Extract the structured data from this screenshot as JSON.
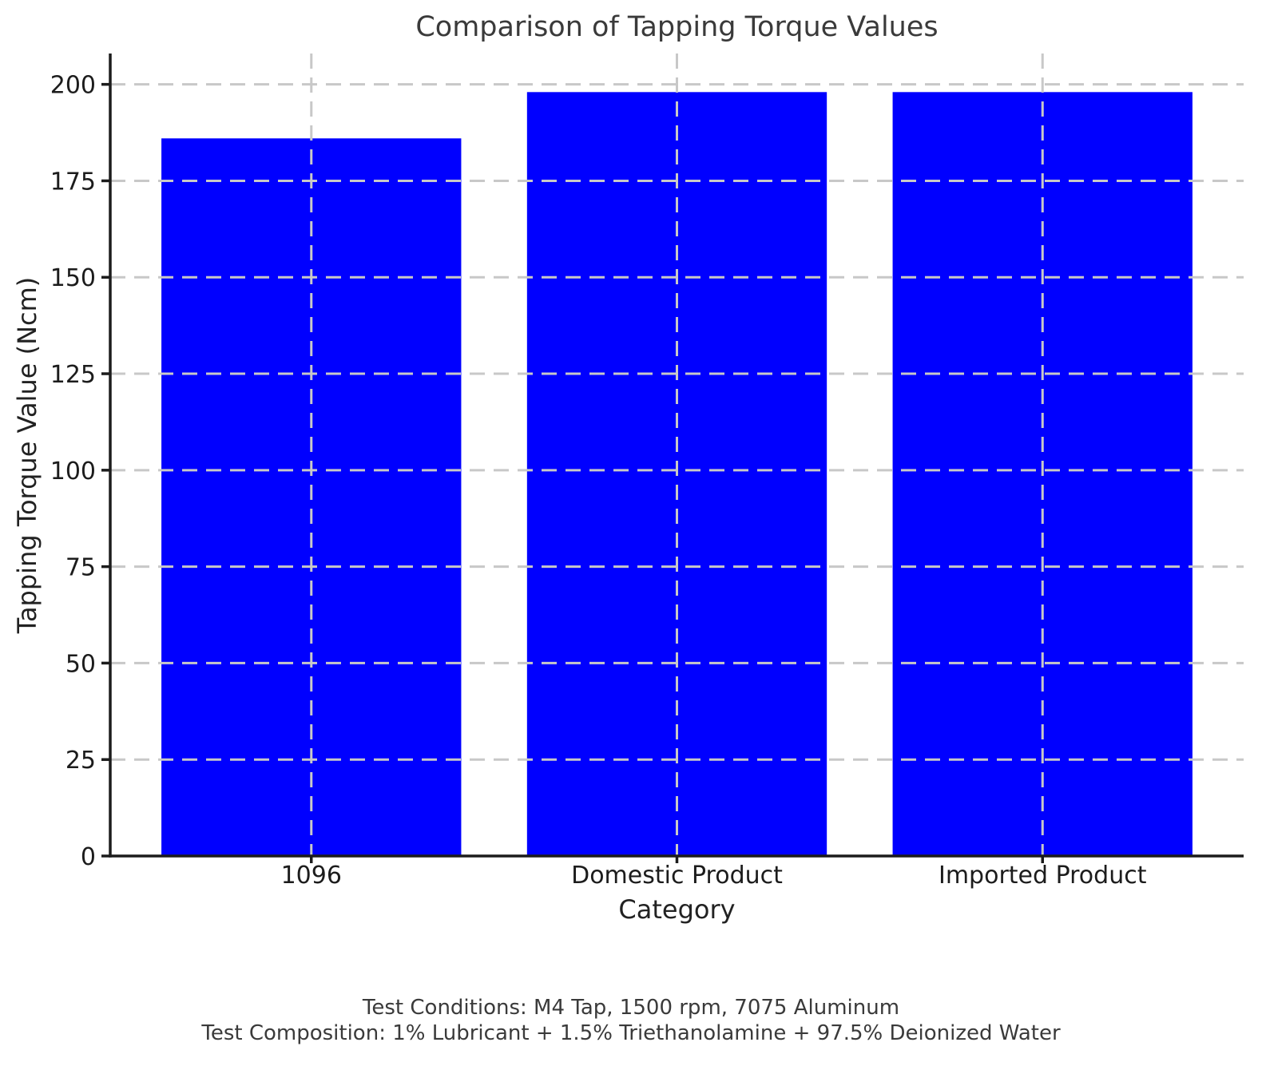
{
  "chart_data": {
    "type": "bar",
    "title": "Comparison of Tapping Torque Values",
    "categories": [
      "1096",
      "Domestic Product",
      "Imported Product"
    ],
    "values": [
      186,
      198,
      198
    ],
    "xlabel": "Category",
    "ylabel": "Tapping Torque Value (Ncm)",
    "ylim": [
      0,
      208
    ],
    "yticks": [
      0,
      25,
      50,
      75,
      100,
      125,
      150,
      175,
      200
    ],
    "grid": true,
    "grid_style": "dashed",
    "legend": "none",
    "annotations": [
      "Test Conditions: M4 Tap, 1500 rpm, 7075 Aluminum",
      "Test Composition: 1% Lubricant + 1.5% Triethanolamine + 97.5% Deionized Water"
    ],
    "colors": {
      "bar": "#0000ff",
      "grid": "#c8c8c8",
      "spine": "#1c1c1c",
      "tick": "#1c1c1c",
      "title_text": "#3a3a3a",
      "label_text": "#222222",
      "footer_text": "#3a3a3a"
    }
  },
  "footer": {
    "line1": "Test Conditions: M4 Tap, 1500 rpm, 7075 Aluminum",
    "line2": "Test Composition: 1% Lubricant + 1.5% Triethanolamine + 97.5% Deionized Water"
  }
}
